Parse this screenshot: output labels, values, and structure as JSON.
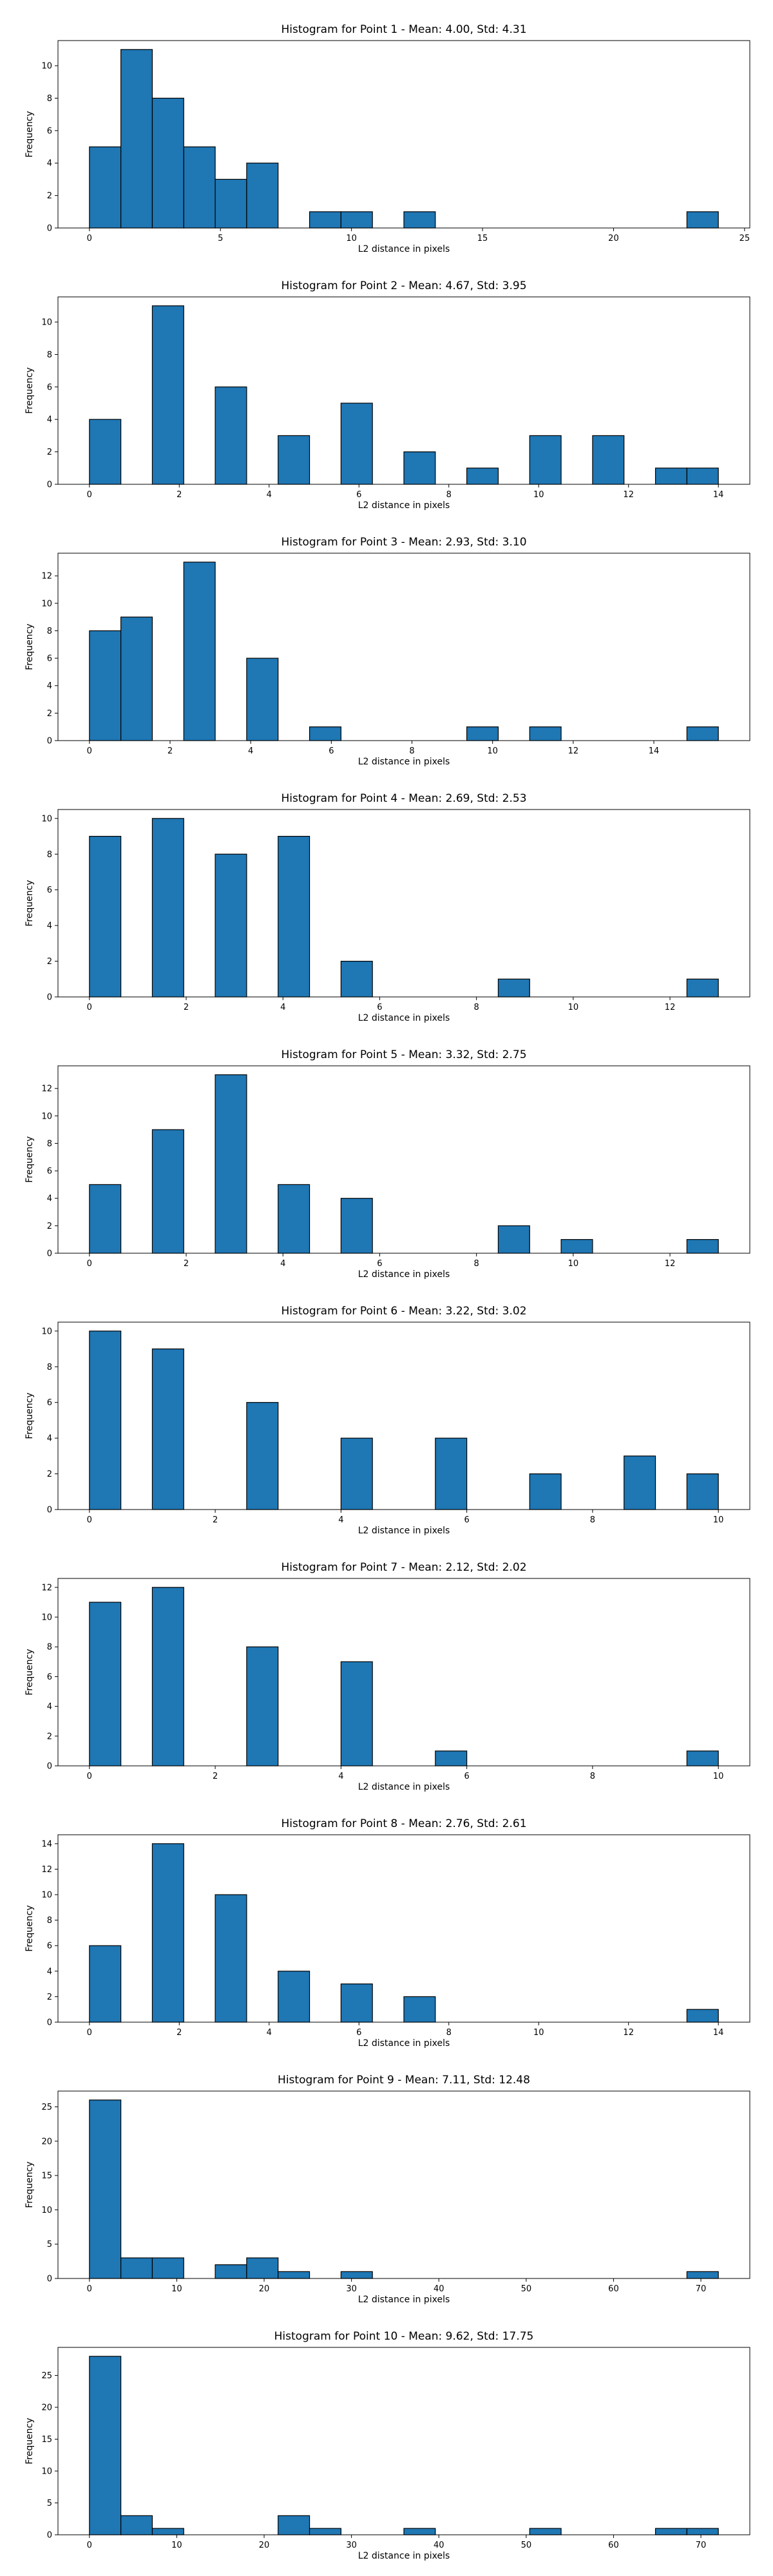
{
  "style": {
    "bar_fill": "#1f77b4",
    "bar_edge": "#000000",
    "background": "#ffffff"
  },
  "chart_data": [
    {
      "type": "bar",
      "title": "Histogram for Point 1 - Mean: 4.00, Std: 4.31",
      "xlabel": "L2 distance in pixels",
      "ylabel": "Frequency",
      "xlim": [
        -1.2,
        25.2
      ],
      "ylim": [
        0,
        11.55
      ],
      "xticks": [
        0,
        5,
        10,
        15,
        20,
        25
      ],
      "yticks": [
        0,
        2,
        4,
        6,
        8,
        10
      ],
      "bins": [
        {
          "x0": 0.0,
          "x1": 1.2,
          "count": 5
        },
        {
          "x0": 1.2,
          "x1": 2.4,
          "count": 11
        },
        {
          "x0": 2.4,
          "x1": 3.6,
          "count": 8
        },
        {
          "x0": 3.6,
          "x1": 4.8,
          "count": 5
        },
        {
          "x0": 4.8,
          "x1": 6.0,
          "count": 3
        },
        {
          "x0": 6.0,
          "x1": 7.2,
          "count": 4
        },
        {
          "x0": 8.4,
          "x1": 9.6,
          "count": 1
        },
        {
          "x0": 9.6,
          "x1": 10.8,
          "count": 1
        },
        {
          "x0": 12.0,
          "x1": 13.2,
          "count": 1
        },
        {
          "x0": 22.8,
          "x1": 24.0,
          "count": 1
        }
      ]
    },
    {
      "type": "bar",
      "title": "Histogram for Point 2 - Mean: 4.67, Std: 3.95",
      "xlabel": "L2 distance in pixels",
      "ylabel": "Frequency",
      "xlim": [
        -0.7,
        14.7
      ],
      "ylim": [
        0,
        11.55
      ],
      "xticks": [
        0,
        2,
        4,
        6,
        8,
        10,
        12,
        14
      ],
      "yticks": [
        0,
        2,
        4,
        6,
        8,
        10
      ],
      "bins": [
        {
          "x0": 0.0,
          "x1": 0.7,
          "count": 4
        },
        {
          "x0": 1.4,
          "x1": 2.1,
          "count": 11
        },
        {
          "x0": 2.8,
          "x1": 3.5,
          "count": 6
        },
        {
          "x0": 4.2,
          "x1": 4.9,
          "count": 3
        },
        {
          "x0": 5.6,
          "x1": 6.3,
          "count": 5
        },
        {
          "x0": 7.0,
          "x1": 7.7,
          "count": 2
        },
        {
          "x0": 8.4,
          "x1": 9.1,
          "count": 1
        },
        {
          "x0": 9.8,
          "x1": 10.5,
          "count": 3
        },
        {
          "x0": 11.2,
          "x1": 11.9,
          "count": 3
        },
        {
          "x0": 12.6,
          "x1": 13.3,
          "count": 1
        },
        {
          "x0": 13.3,
          "x1": 14.0,
          "count": 1
        }
      ]
    },
    {
      "type": "bar",
      "title": "Histogram for Point 3 - Mean: 2.93, Std: 3.10",
      "xlabel": "L2 distance in pixels",
      "ylabel": "Frequency",
      "xlim": [
        -0.78,
        16.38
      ],
      "ylim": [
        0,
        13.65
      ],
      "xticks": [
        0,
        2,
        4,
        6,
        8,
        10,
        12,
        14
      ],
      "yticks": [
        0,
        2,
        4,
        6,
        8,
        10,
        12
      ],
      "bins": [
        {
          "x0": 0.0,
          "x1": 0.78,
          "count": 8
        },
        {
          "x0": 0.78,
          "x1": 1.56,
          "count": 9
        },
        {
          "x0": 2.34,
          "x1": 3.12,
          "count": 13
        },
        {
          "x0": 3.9,
          "x1": 4.68,
          "count": 6
        },
        {
          "x0": 5.46,
          "x1": 6.24,
          "count": 1
        },
        {
          "x0": 9.36,
          "x1": 10.14,
          "count": 1
        },
        {
          "x0": 10.92,
          "x1": 11.7,
          "count": 1
        },
        {
          "x0": 14.82,
          "x1": 15.6,
          "count": 1
        }
      ]
    },
    {
      "type": "bar",
      "title": "Histogram for Point 4 - Mean: 2.69, Std: 2.53",
      "xlabel": "L2 distance in pixels",
      "ylabel": "Frequency",
      "xlim": [
        -0.65,
        13.65
      ],
      "ylim": [
        0,
        10.5
      ],
      "xticks": [
        0,
        2,
        4,
        6,
        8,
        10,
        12
      ],
      "yticks": [
        0,
        2,
        4,
        6,
        8,
        10
      ],
      "bins": [
        {
          "x0": 0.0,
          "x1": 0.65,
          "count": 9
        },
        {
          "x0": 1.3,
          "x1": 1.95,
          "count": 10
        },
        {
          "x0": 2.6,
          "x1": 3.25,
          "count": 8
        },
        {
          "x0": 3.9,
          "x1": 4.55,
          "count": 9
        },
        {
          "x0": 5.2,
          "x1": 5.85,
          "count": 2
        },
        {
          "x0": 8.45,
          "x1": 9.1,
          "count": 1
        },
        {
          "x0": 12.35,
          "x1": 13.0,
          "count": 1
        }
      ]
    },
    {
      "type": "bar",
      "title": "Histogram for Point 5 - Mean: 3.32, Std: 2.75",
      "xlabel": "L2 distance in pixels",
      "ylabel": "Frequency",
      "xlim": [
        -0.65,
        13.65
      ],
      "ylim": [
        0,
        13.65
      ],
      "xticks": [
        0,
        2,
        4,
        6,
        8,
        10,
        12
      ],
      "yticks": [
        0,
        2,
        4,
        6,
        8,
        10,
        12
      ],
      "bins": [
        {
          "x0": 0.0,
          "x1": 0.65,
          "count": 5
        },
        {
          "x0": 1.3,
          "x1": 1.95,
          "count": 9
        },
        {
          "x0": 2.6,
          "x1": 3.25,
          "count": 13
        },
        {
          "x0": 3.9,
          "x1": 4.55,
          "count": 5
        },
        {
          "x0": 5.2,
          "x1": 5.85,
          "count": 4
        },
        {
          "x0": 8.45,
          "x1": 9.1,
          "count": 2
        },
        {
          "x0": 9.75,
          "x1": 10.4,
          "count": 1
        },
        {
          "x0": 12.35,
          "x1": 13.0,
          "count": 1
        }
      ]
    },
    {
      "type": "bar",
      "title": "Histogram for Point 6 - Mean: 3.22, Std: 3.02",
      "xlabel": "L2 distance in pixels",
      "ylabel": "Frequency",
      "xlim": [
        -0.5,
        10.5
      ],
      "ylim": [
        0,
        10.5
      ],
      "xticks": [
        0,
        2,
        4,
        6,
        8,
        10
      ],
      "yticks": [
        0,
        2,
        4,
        6,
        8,
        10
      ],
      "bins": [
        {
          "x0": 0.0,
          "x1": 0.5,
          "count": 10
        },
        {
          "x0": 1.0,
          "x1": 1.5,
          "count": 9
        },
        {
          "x0": 2.5,
          "x1": 3.0,
          "count": 6
        },
        {
          "x0": 4.0,
          "x1": 4.5,
          "count": 4
        },
        {
          "x0": 5.5,
          "x1": 6.0,
          "count": 4
        },
        {
          "x0": 7.0,
          "x1": 7.5,
          "count": 2
        },
        {
          "x0": 8.5,
          "x1": 9.0,
          "count": 3
        },
        {
          "x0": 9.5,
          "x1": 10.0,
          "count": 2
        }
      ]
    },
    {
      "type": "bar",
      "title": "Histogram for Point 7 - Mean: 2.12, Std: 2.02",
      "xlabel": "L2 distance in pixels",
      "ylabel": "Frequency",
      "xlim": [
        -0.5,
        10.5
      ],
      "ylim": [
        0,
        12.6
      ],
      "xticks": [
        0,
        2,
        4,
        6,
        8,
        10
      ],
      "yticks": [
        0,
        2,
        4,
        6,
        8,
        10,
        12
      ],
      "bins": [
        {
          "x0": 0.0,
          "x1": 0.5,
          "count": 11
        },
        {
          "x0": 1.0,
          "x1": 1.5,
          "count": 12
        },
        {
          "x0": 2.5,
          "x1": 3.0,
          "count": 8
        },
        {
          "x0": 4.0,
          "x1": 4.5,
          "count": 7
        },
        {
          "x0": 5.5,
          "x1": 6.0,
          "count": 1
        },
        {
          "x0": 9.5,
          "x1": 10.0,
          "count": 1
        }
      ]
    },
    {
      "type": "bar",
      "title": "Histogram for Point 8 - Mean: 2.76, Std: 2.61",
      "xlabel": "L2 distance in pixels",
      "ylabel": "Frequency",
      "xlim": [
        -0.7,
        14.7
      ],
      "ylim": [
        0,
        14.7
      ],
      "xticks": [
        0,
        2,
        4,
        6,
        8,
        10,
        12,
        14
      ],
      "yticks": [
        0,
        2,
        4,
        6,
        8,
        10,
        12,
        14
      ],
      "bins": [
        {
          "x0": 0.0,
          "x1": 0.7,
          "count": 6
        },
        {
          "x0": 1.4,
          "x1": 2.1,
          "count": 14
        },
        {
          "x0": 2.8,
          "x1": 3.5,
          "count": 10
        },
        {
          "x0": 4.2,
          "x1": 4.9,
          "count": 4
        },
        {
          "x0": 5.6,
          "x1": 6.3,
          "count": 3
        },
        {
          "x0": 7.0,
          "x1": 7.7,
          "count": 2
        },
        {
          "x0": 13.3,
          "x1": 14.0,
          "count": 1
        }
      ]
    },
    {
      "type": "bar",
      "title": "Histogram for Point 9 - Mean: 7.11, Std: 12.48",
      "xlabel": "L2 distance in pixels",
      "ylabel": "Frequency",
      "xlim": [
        -3.6,
        75.6
      ],
      "ylim": [
        0,
        27.3
      ],
      "xticks": [
        0,
        10,
        20,
        30,
        40,
        50,
        60,
        70
      ],
      "yticks": [
        0,
        5,
        10,
        15,
        20,
        25
      ],
      "bins": [
        {
          "x0": 0.0,
          "x1": 3.6,
          "count": 26
        },
        {
          "x0": 3.6,
          "x1": 7.2,
          "count": 3
        },
        {
          "x0": 7.2,
          "x1": 10.8,
          "count": 3
        },
        {
          "x0": 14.4,
          "x1": 18.0,
          "count": 2
        },
        {
          "x0": 18.0,
          "x1": 21.6,
          "count": 3
        },
        {
          "x0": 21.6,
          "x1": 25.2,
          "count": 1
        },
        {
          "x0": 28.8,
          "x1": 32.4,
          "count": 1
        },
        {
          "x0": 68.4,
          "x1": 72.0,
          "count": 1
        }
      ]
    },
    {
      "type": "bar",
      "title": "Histogram for Point 10 - Mean: 9.62, Std: 17.75",
      "xlabel": "L2 distance in pixels",
      "ylabel": "Frequency",
      "xlim": [
        -3.6,
        75.6
      ],
      "ylim": [
        0,
        29.4
      ],
      "xticks": [
        0,
        10,
        20,
        30,
        40,
        50,
        60,
        70
      ],
      "yticks": [
        0,
        5,
        10,
        15,
        20,
        25
      ],
      "bins": [
        {
          "x0": 0.0,
          "x1": 3.6,
          "count": 28
        },
        {
          "x0": 3.6,
          "x1": 7.2,
          "count": 3
        },
        {
          "x0": 7.2,
          "x1": 10.8,
          "count": 1
        },
        {
          "x0": 21.6,
          "x1": 25.2,
          "count": 3
        },
        {
          "x0": 25.2,
          "x1": 28.8,
          "count": 1
        },
        {
          "x0": 36.0,
          "x1": 39.6,
          "count": 1
        },
        {
          "x0": 50.4,
          "x1": 54.0,
          "count": 1
        },
        {
          "x0": 64.8,
          "x1": 68.4,
          "count": 1
        },
        {
          "x0": 68.4,
          "x1": 72.0,
          "count": 1
        }
      ]
    }
  ]
}
